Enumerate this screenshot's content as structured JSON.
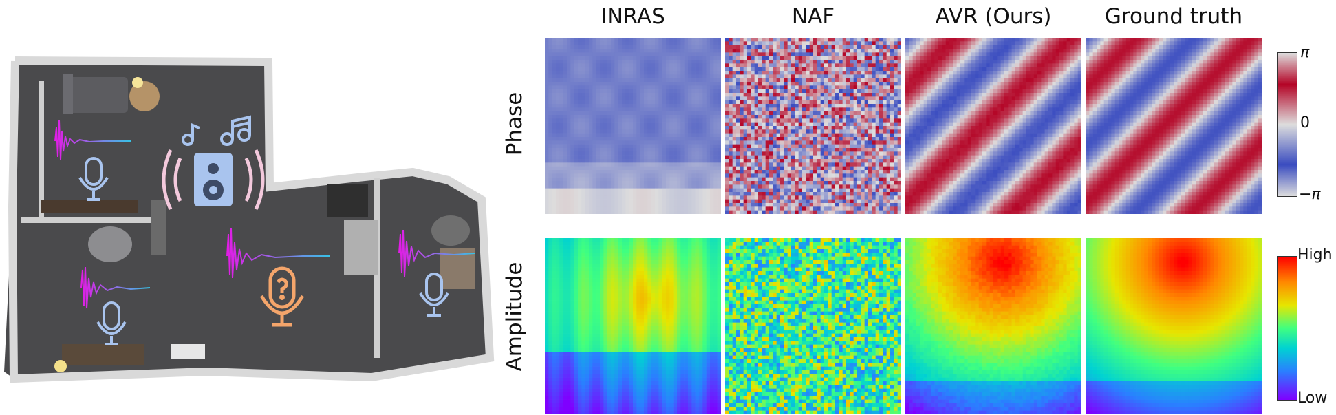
{
  "figure": {
    "columns": [
      "INRAS",
      "NAF",
      "AVR (Ours)",
      "Ground truth"
    ],
    "rows": [
      "Phase",
      "Amplitude"
    ],
    "phase_colorbar": {
      "max": "π",
      "mid": "0",
      "min": "−π",
      "colors": [
        "#3a4cc0",
        "#dddddd",
        "#b40426"
      ]
    },
    "amplitude_colorbar": {
      "max": "High",
      "min": "Low",
      "colors": [
        "#7f00ff",
        "#00e0e0",
        "#ff0000"
      ]
    },
    "scene": {
      "objects": [
        "speaker-icon",
        "music-note-icon",
        "microphone-icon",
        "query-microphone-icon",
        "impulse-response-waveform"
      ],
      "colors": {
        "waveform": "#e21ce6",
        "mic": "#a9c4ee",
        "query_mic": "#f4a56b",
        "speaker": "#a9c4ee"
      }
    }
  }
}
